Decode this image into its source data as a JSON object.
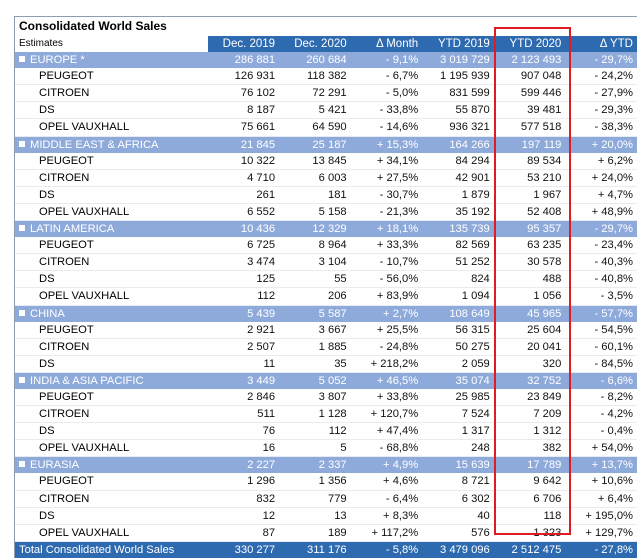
{
  "title": "Consolidated World Sales",
  "subtitle": "Estimates",
  "columns": [
    "Dec. 2019",
    "Dec. 2020",
    "Δ Month",
    "YTD 2019",
    "YTD 2020",
    "Δ YTD"
  ],
  "highlight_color": "#e01b22",
  "header_color": "#2e6ab0",
  "region_color": "#8eaadb",
  "rows": [
    {
      "type": "region",
      "label": "EUROPE *",
      "values": [
        "286 881",
        "260 684",
        "- 9,1%",
        "3 019 729",
        "2 123 493",
        "- 29,7%"
      ]
    },
    {
      "type": "item",
      "label": "PEUGEOT",
      "values": [
        "126 931",
        "118 382",
        "- 6,7%",
        "1 195 939",
        "907 048",
        "- 24,2%"
      ]
    },
    {
      "type": "item",
      "label": "CITROEN",
      "values": [
        "76 102",
        "72 291",
        "- 5,0%",
        "831 599",
        "599 446",
        "- 27,9%"
      ]
    },
    {
      "type": "item",
      "label": "DS",
      "values": [
        "8 187",
        "5 421",
        "- 33,8%",
        "55 870",
        "39 481",
        "- 29,3%"
      ]
    },
    {
      "type": "item",
      "label": "OPEL VAUXHALL",
      "values": [
        "75 661",
        "64 590",
        "- 14,6%",
        "936 321",
        "577 518",
        "- 38,3%"
      ]
    },
    {
      "type": "region",
      "label": "MIDDLE EAST & AFRICA",
      "values": [
        "21 845",
        "25 187",
        "+ 15,3%",
        "164 266",
        "197 119",
        "+ 20,0%"
      ]
    },
    {
      "type": "item",
      "label": "PEUGEOT",
      "values": [
        "10 322",
        "13 845",
        "+ 34,1%",
        "84 294",
        "89 534",
        "+ 6,2%"
      ]
    },
    {
      "type": "item",
      "label": "CITROEN",
      "values": [
        "4 710",
        "6 003",
        "+ 27,5%",
        "42 901",
        "53 210",
        "+ 24,0%"
      ]
    },
    {
      "type": "item",
      "label": "DS",
      "values": [
        "261",
        "181",
        "- 30,7%",
        "1 879",
        "1 967",
        "+ 4,7%"
      ]
    },
    {
      "type": "item",
      "label": "OPEL VAUXHALL",
      "values": [
        "6 552",
        "5 158",
        "- 21,3%",
        "35 192",
        "52 408",
        "+ 48,9%"
      ]
    },
    {
      "type": "region",
      "label": "LATIN AMERICA",
      "values": [
        "10 436",
        "12 329",
        "+ 18,1%",
        "135 739",
        "95 357",
        "- 29,7%"
      ]
    },
    {
      "type": "item",
      "label": "PEUGEOT",
      "values": [
        "6 725",
        "8 964",
        "+ 33,3%",
        "82 569",
        "63 235",
        "- 23,4%"
      ]
    },
    {
      "type": "item",
      "label": "CITROEN",
      "values": [
        "3 474",
        "3 104",
        "- 10,7%",
        "51 252",
        "30 578",
        "- 40,3%"
      ]
    },
    {
      "type": "item",
      "label": "DS",
      "values": [
        "125",
        "55",
        "- 56,0%",
        "824",
        "488",
        "- 40,8%"
      ]
    },
    {
      "type": "item",
      "label": "OPEL VAUXHALL",
      "values": [
        "112",
        "206",
        "+ 83,9%",
        "1 094",
        "1 056",
        "- 3,5%"
      ]
    },
    {
      "type": "region",
      "label": "CHINA",
      "values": [
        "5 439",
        "5 587",
        "+ 2,7%",
        "108 649",
        "45 965",
        "- 57,7%"
      ]
    },
    {
      "type": "item",
      "label": "PEUGEOT",
      "values": [
        "2 921",
        "3 667",
        "+ 25,5%",
        "56 315",
        "25 604",
        "- 54,5%"
      ]
    },
    {
      "type": "item",
      "label": "CITROEN",
      "values": [
        "2 507",
        "1 885",
        "- 24,8%",
        "50 275",
        "20 041",
        "- 60,1%"
      ]
    },
    {
      "type": "item",
      "label": "DS",
      "values": [
        "11",
        "35",
        "+ 218,2%",
        "2 059",
        "320",
        "- 84,5%"
      ]
    },
    {
      "type": "region",
      "label": "INDIA & ASIA PACIFIC",
      "values": [
        "3 449",
        "5 052",
        "+ 46,5%",
        "35 074",
        "32 752",
        "- 6,6%"
      ]
    },
    {
      "type": "item",
      "label": "PEUGEOT",
      "values": [
        "2 846",
        "3 807",
        "+ 33,8%",
        "25 985",
        "23 849",
        "- 8,2%"
      ]
    },
    {
      "type": "item",
      "label": "CITROEN",
      "values": [
        "511",
        "1 128",
        "+ 120,7%",
        "7 524",
        "7 209",
        "- 4,2%"
      ]
    },
    {
      "type": "item",
      "label": "DS",
      "values": [
        "76",
        "112",
        "+ 47,4%",
        "1 317",
        "1 312",
        "- 0,4%"
      ]
    },
    {
      "type": "item",
      "label": "OPEL VAUXHALL",
      "values": [
        "16",
        "5",
        "- 68,8%",
        "248",
        "382",
        "+ 54,0%"
      ]
    },
    {
      "type": "region",
      "label": "EURASIA",
      "values": [
        "2 227",
        "2 337",
        "+ 4,9%",
        "15 639",
        "17 789",
        "+ 13,7%"
      ]
    },
    {
      "type": "item",
      "label": "PEUGEOT",
      "values": [
        "1 296",
        "1 356",
        "+ 4,6%",
        "8 721",
        "9 642",
        "+ 10,6%"
      ]
    },
    {
      "type": "item",
      "label": "CITROEN",
      "values": [
        "832",
        "779",
        "- 6,4%",
        "6 302",
        "6 706",
        "+ 6,4%"
      ]
    },
    {
      "type": "item",
      "label": "DS",
      "values": [
        "12",
        "13",
        "+ 8,3%",
        "40",
        "118",
        "+ 195,0%"
      ]
    },
    {
      "type": "item",
      "label": "OPEL VAUXHALL",
      "values": [
        "87",
        "189",
        "+ 117,2%",
        "576",
        "1 323",
        "+ 129,7%"
      ]
    },
    {
      "type": "total",
      "label": "Total Consolidated World Sales",
      "values": [
        "330 277",
        "311 176",
        "- 5,8%",
        "3 479 096",
        "2 512 475",
        "- 27,8%"
      ]
    }
  ]
}
